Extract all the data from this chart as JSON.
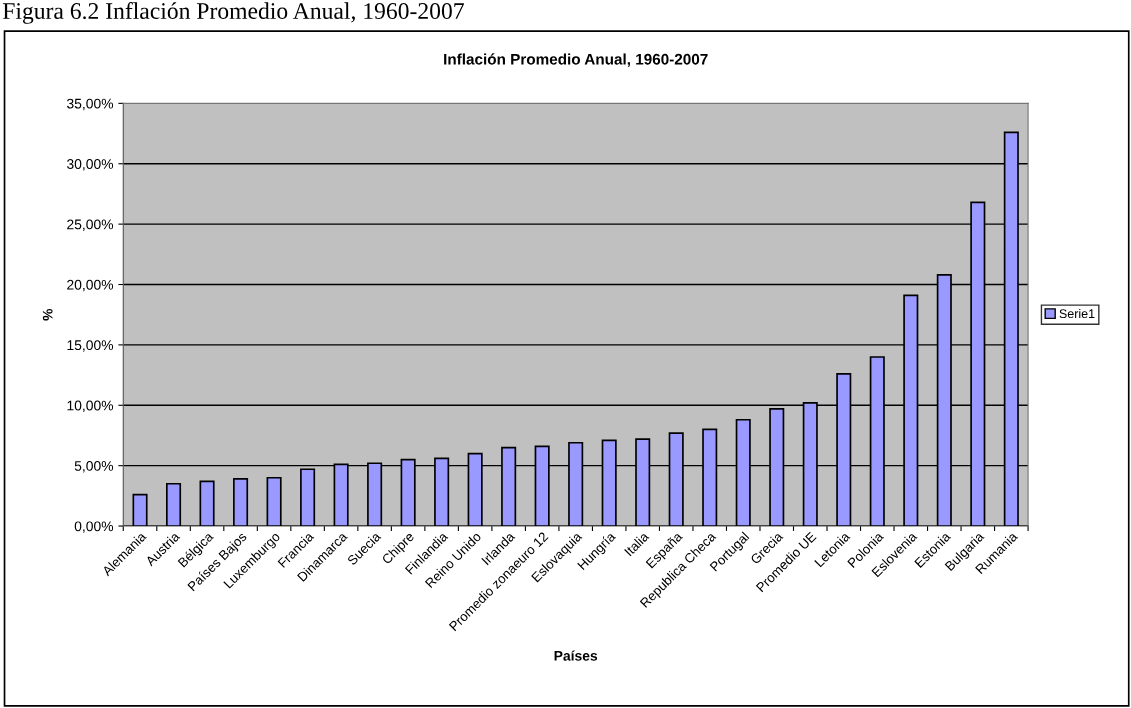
{
  "chart_data": {
    "type": "bar",
    "title": "Inflación Promedio Anual, 1960-2007",
    "annotations": [
      "Figura 6.2 Inflación Promedio Anual, 1960-2007"
    ],
    "xlabel": "Países",
    "ylabel": "%",
    "categories": [
      "Alemania",
      "Austria",
      "Bélgica",
      "Países Bajos",
      "Luxemburgo",
      "Francia",
      "Dinamarca",
      "Suecia",
      "Chipre",
      "Finlandia",
      "Reino Unido",
      "Irlanda",
      "Promedio zonaeuro 12",
      "Eslovaquia",
      "Hungría",
      "Italia",
      "España",
      "Republica Checa",
      "Portugal",
      "Grecia",
      "Promedio UE",
      "Letonia",
      "Polonia",
      "Eslovenia",
      "Estonia",
      "Bulgaria",
      "Rumania"
    ],
    "series": [
      {
        "name": "Serie1",
        "color": "#9999ff",
        "values": [
          2.6,
          3.5,
          3.7,
          3.9,
          4.0,
          4.7,
          5.1,
          5.2,
          5.5,
          5.6,
          6.0,
          6.5,
          6.6,
          6.9,
          7.1,
          7.2,
          7.7,
          8.0,
          8.8,
          9.7,
          10.2,
          12.6,
          14.0,
          19.1,
          20.8,
          26.8,
          32.6
        ]
      }
    ],
    "ylim": [
      0,
      35
    ],
    "yticks": [
      {
        "value": 0,
        "label": "0,00%"
      },
      {
        "value": 5,
        "label": "5,00%"
      },
      {
        "value": 10,
        "label": "10,00%"
      },
      {
        "value": 15,
        "label": "15,00%"
      },
      {
        "value": 20,
        "label": "20,00%"
      },
      {
        "value": 25,
        "label": "25,00%"
      },
      {
        "value": 30,
        "label": "30,00%"
      },
      {
        "value": 35,
        "label": "35,00%"
      }
    ],
    "grid": "y",
    "legend": "right"
  }
}
